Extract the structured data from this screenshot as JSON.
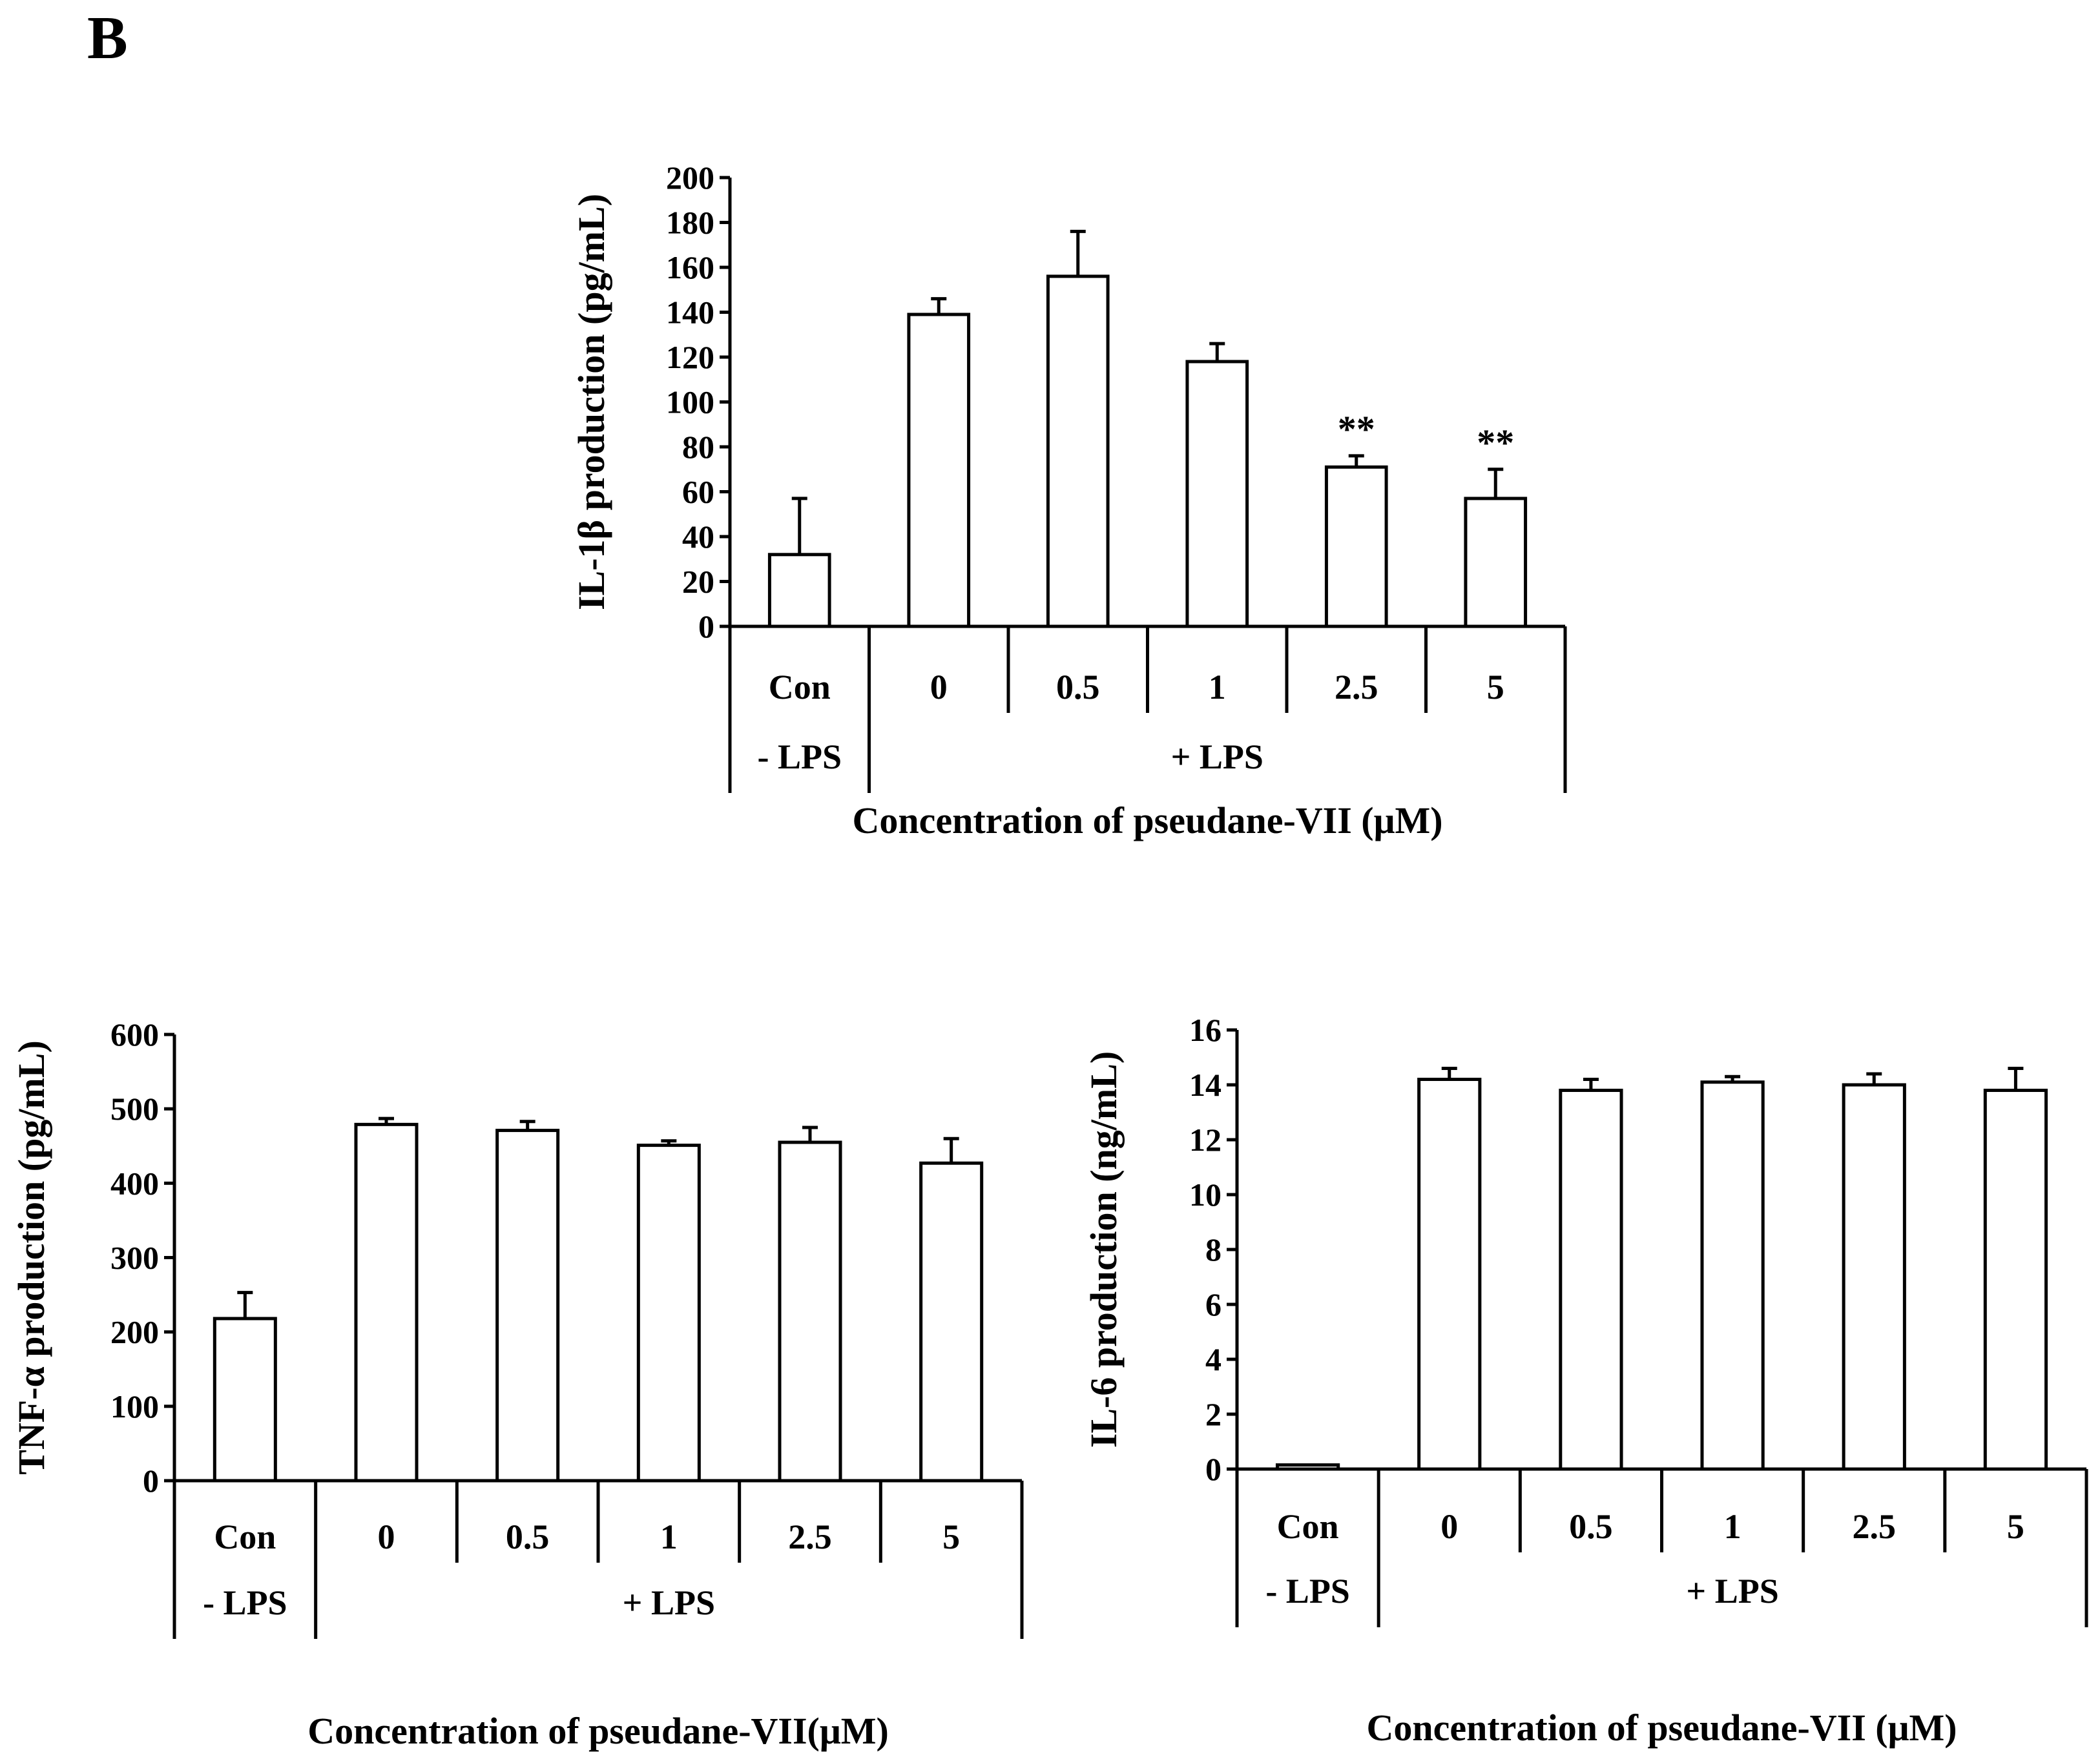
{
  "panel_label": "B",
  "chart_data": [
    {
      "type": "bar",
      "id": "il1b",
      "title": "",
      "ylabel": "IL-1β production (pg/mL)",
      "xlabel": "Concentration of pseudane-VII (μM)",
      "ylim": [
        0,
        200
      ],
      "yticks": [
        0,
        20,
        40,
        60,
        80,
        100,
        120,
        140,
        160,
        180,
        200
      ],
      "categories": [
        "Con",
        "0",
        "0.5",
        "1",
        "2.5",
        "5"
      ],
      "groups": [
        {
          "label": "- LPS",
          "span": 1
        },
        {
          "label": "+ LPS",
          "span": 5
        }
      ],
      "values": [
        32,
        139,
        156,
        118,
        71,
        57
      ],
      "errors": [
        25,
        7,
        20,
        8,
        5,
        13
      ],
      "annotations": [
        "",
        "",
        "",
        "",
        "**",
        "**"
      ]
    },
    {
      "type": "bar",
      "id": "tnfa",
      "title": "",
      "ylabel": "TNF-α production (pg/mL)",
      "xlabel": "Concentration of pseudane-VII(μM)",
      "ylim": [
        0,
        600
      ],
      "yticks": [
        0,
        100,
        200,
        300,
        400,
        500,
        600
      ],
      "categories": [
        "Con",
        "0",
        "0.5",
        "1",
        "2.5",
        "5"
      ],
      "groups": [
        {
          "label": "- LPS",
          "span": 1
        },
        {
          "label": "+ LPS",
          "span": 5
        }
      ],
      "values": [
        218,
        479,
        471,
        451,
        455,
        427
      ],
      "errors": [
        35,
        8,
        12,
        6,
        20,
        33
      ],
      "annotations": [
        "",
        "",
        "",
        "",
        "",
        ""
      ]
    },
    {
      "type": "bar",
      "id": "il6",
      "title": "",
      "ylabel": "IL-6 production (ng/mL)",
      "xlabel": "Concentration of pseudane-VII (μM)",
      "ylim": [
        0,
        16
      ],
      "yticks": [
        0,
        2,
        4,
        6,
        8,
        10,
        12,
        14,
        16
      ],
      "categories": [
        "Con",
        "0",
        "0.5",
        "1",
        "2.5",
        "5"
      ],
      "groups": [
        {
          "label": "- LPS",
          "span": 1
        },
        {
          "label": "+ LPS",
          "span": 5
        }
      ],
      "values": [
        0.15,
        14.2,
        13.8,
        14.1,
        14.0,
        13.8
      ],
      "errors": [
        0,
        0.4,
        0.4,
        0.2,
        0.4,
        0.8
      ],
      "annotations": [
        "",
        "",
        "",
        "",
        "",
        ""
      ]
    }
  ]
}
